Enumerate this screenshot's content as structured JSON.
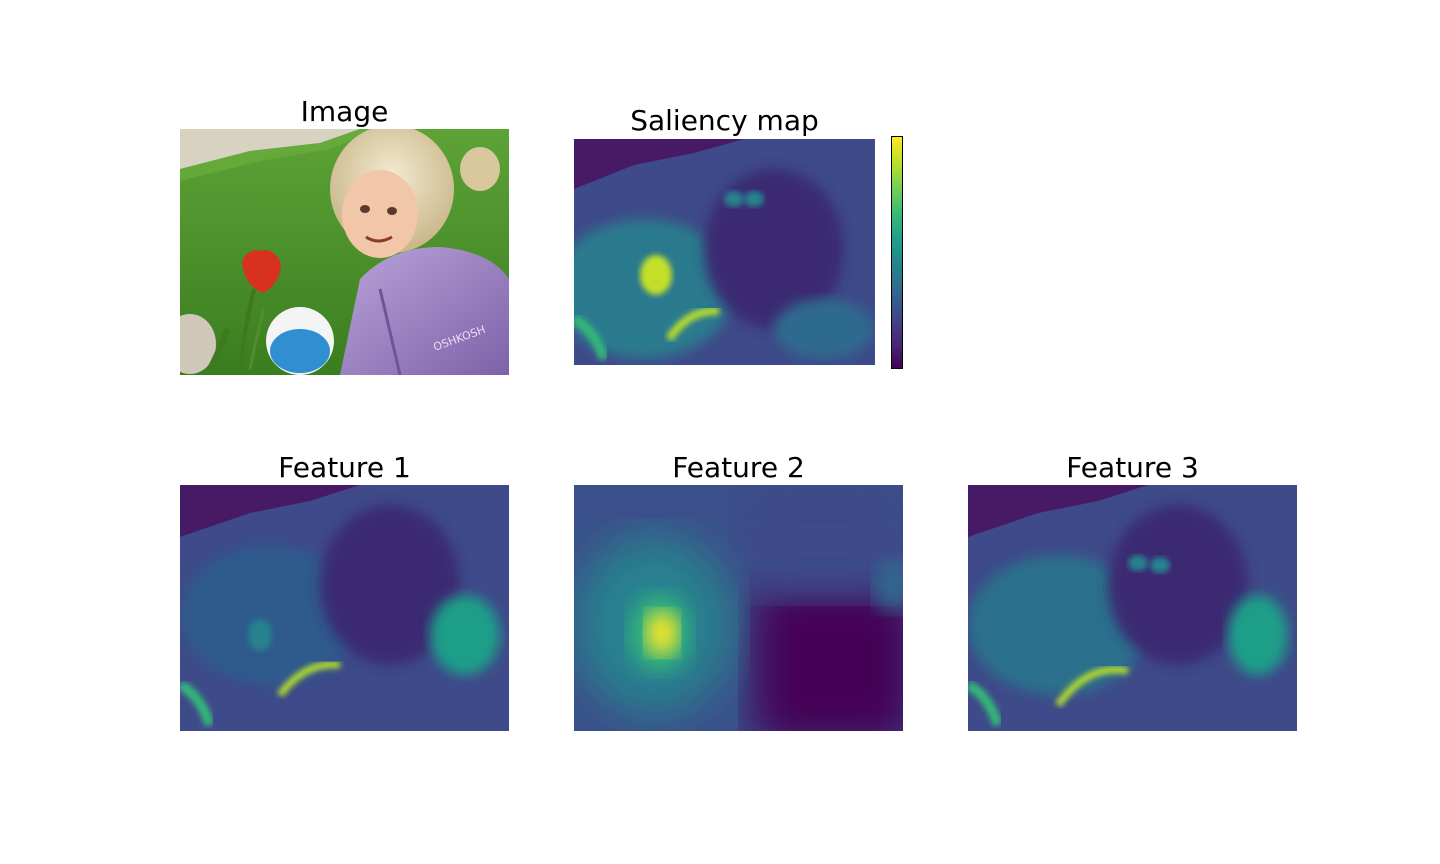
{
  "panels": {
    "image": {
      "title": "Image"
    },
    "saliency": {
      "title": "Saliency map"
    },
    "feature1": {
      "title": "Feature 1"
    },
    "feature2": {
      "title": "Feature 2"
    },
    "feature3": {
      "title": "Feature 3"
    }
  },
  "colormap": {
    "name": "viridis",
    "stops": [
      "#440154",
      "#482878",
      "#3e4989",
      "#31688e",
      "#26828e",
      "#1f9e89",
      "#35b779",
      "#6ece58",
      "#b5de2b",
      "#fde725"
    ]
  },
  "colors": {
    "background": "#ffffff",
    "grass": "#4a8f2a",
    "path": "#d8d2c0",
    "jacket": "#a48bc8",
    "tulip": "#d8321f",
    "ball": "#2f8fd0",
    "hair": "#e6d9b8",
    "skin": "#f2c6a8"
  }
}
